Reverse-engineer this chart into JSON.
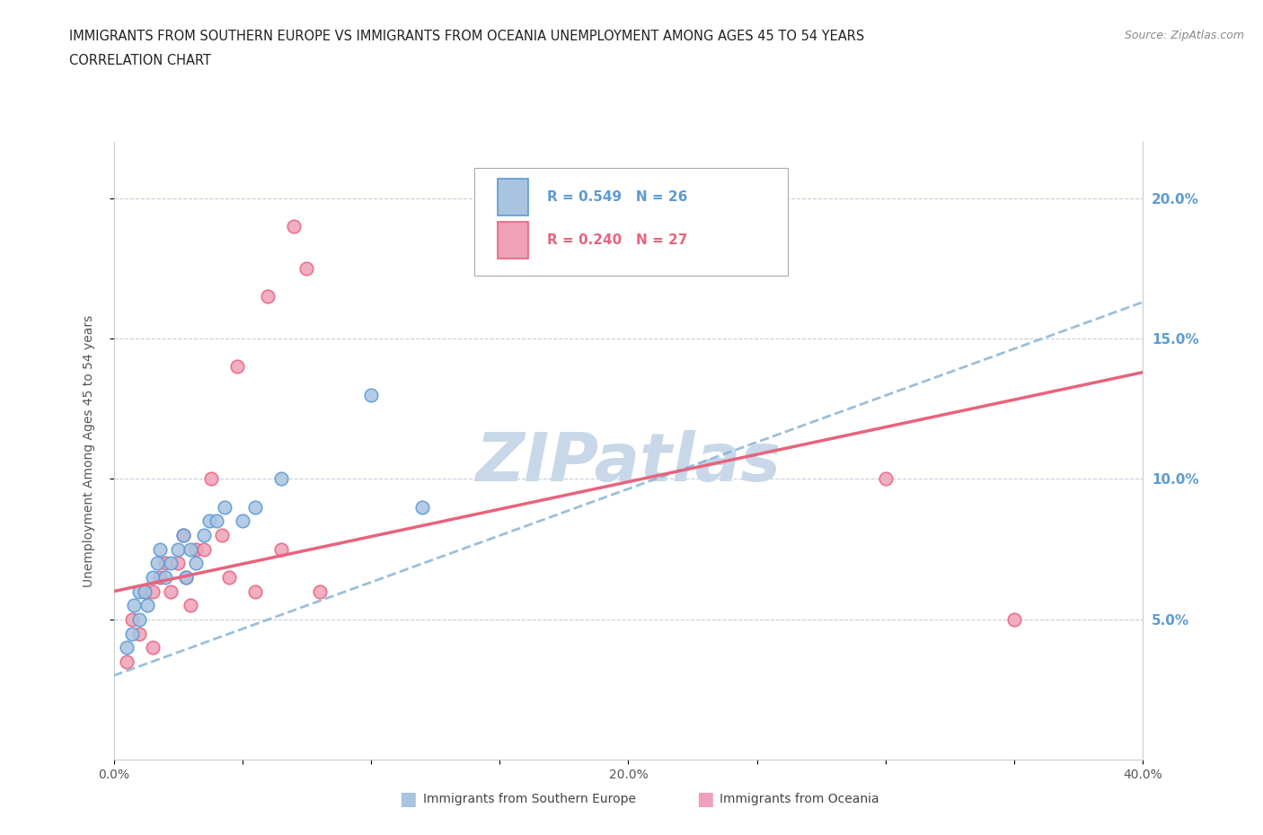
{
  "title_line1": "IMMIGRANTS FROM SOUTHERN EUROPE VS IMMIGRANTS FROM OCEANIA UNEMPLOYMENT AMONG AGES 45 TO 54 YEARS",
  "title_line2": "CORRELATION CHART",
  "source": "Source: ZipAtlas.com",
  "ylabel": "Unemployment Among Ages 45 to 54 years",
  "xlim": [
    0.0,
    0.4
  ],
  "ylim": [
    0.0,
    0.22
  ],
  "right_yticks": [
    0.05,
    0.1,
    0.15,
    0.2
  ],
  "right_yticklabels": [
    "5.0%",
    "10.0%",
    "15.0%",
    "20.0%"
  ],
  "xticks": [
    0.0,
    0.05,
    0.1,
    0.15,
    0.2,
    0.25,
    0.3,
    0.35,
    0.4
  ],
  "xticklabels": [
    "0.0%",
    "",
    "",
    "",
    "20.0%",
    "",
    "",
    "",
    "40.0%"
  ],
  "blue_scatter_x": [
    0.005,
    0.007,
    0.008,
    0.01,
    0.01,
    0.012,
    0.013,
    0.015,
    0.017,
    0.018,
    0.02,
    0.022,
    0.025,
    0.027,
    0.028,
    0.03,
    0.032,
    0.035,
    0.037,
    0.04,
    0.043,
    0.05,
    0.055,
    0.065,
    0.1,
    0.12
  ],
  "blue_scatter_y": [
    0.04,
    0.045,
    0.055,
    0.05,
    0.06,
    0.06,
    0.055,
    0.065,
    0.07,
    0.075,
    0.065,
    0.07,
    0.075,
    0.08,
    0.065,
    0.075,
    0.07,
    0.08,
    0.085,
    0.085,
    0.09,
    0.085,
    0.09,
    0.1,
    0.13,
    0.09
  ],
  "pink_scatter_x": [
    0.005,
    0.007,
    0.01,
    0.012,
    0.015,
    0.015,
    0.018,
    0.02,
    0.022,
    0.025,
    0.027,
    0.028,
    0.03,
    0.032,
    0.035,
    0.038,
    0.042,
    0.045,
    0.048,
    0.055,
    0.06,
    0.065,
    0.07,
    0.075,
    0.08,
    0.3,
    0.35
  ],
  "pink_scatter_y": [
    0.035,
    0.05,
    0.045,
    0.06,
    0.04,
    0.06,
    0.065,
    0.07,
    0.06,
    0.07,
    0.08,
    0.065,
    0.055,
    0.075,
    0.075,
    0.1,
    0.08,
    0.065,
    0.14,
    0.06,
    0.165,
    0.075,
    0.19,
    0.175,
    0.06,
    0.1,
    0.05
  ],
  "blue_R": 0.549,
  "blue_N": 26,
  "pink_R": 0.24,
  "pink_N": 27,
  "blue_color": "#a8c4e0",
  "pink_color": "#f0a0b8",
  "blue_line_color": "#5b9bd5",
  "pink_line_color": "#e8637d",
  "legend_blue_text_color": "#5b9bd5",
  "legend_pink_text_color": "#e8637d",
  "right_axis_color": "#5b9bd5",
  "watermark_text": "ZIPatlas",
  "watermark_color": "#c8d8e8",
  "grid_color": "#c0c8d8",
  "background_color": "#ffffff",
  "scatter_size": 110,
  "blue_trend_start_y": 0.03,
  "blue_trend_end_y": 0.163,
  "pink_trend_start_y": 0.06,
  "pink_trend_end_y": 0.138
}
